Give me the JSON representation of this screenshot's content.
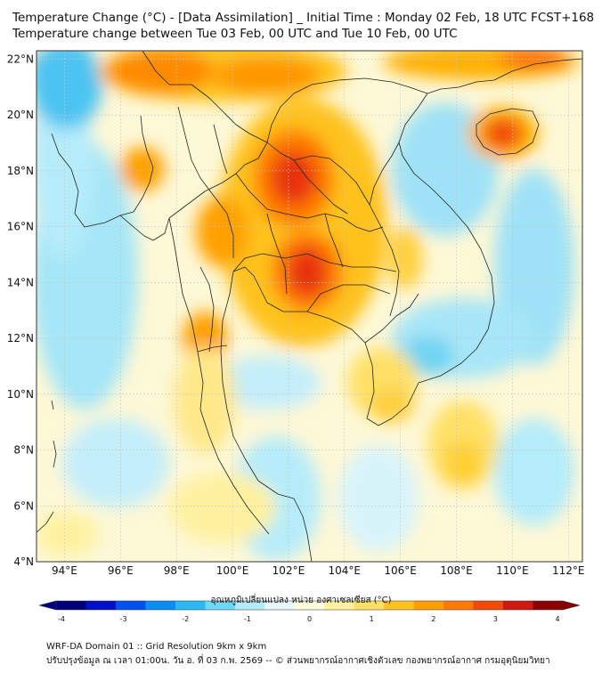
{
  "header": {
    "title_line1": "Temperature Change (°C) - [Data Assimilation] _ Initial Time : Monday 02 Feb, 18 UTC FCST+168",
    "title_line2": "Temperature change between Tue 03 Feb, 00 UTC and Tue 10 Feb, 00 UTC"
  },
  "map": {
    "lat_labels": [
      "22°N",
      "20°N",
      "18°N",
      "16°N",
      "14°N",
      "12°N",
      "10°N",
      "8°N",
      "6°N",
      "4°N"
    ],
    "lon_labels": [
      "94°E",
      "96°E",
      "98°E",
      "100°E",
      "102°E",
      "104°E",
      "106°E",
      "108°E",
      "110°E",
      "112°E"
    ],
    "lat_values": [
      22,
      20,
      18,
      16,
      14,
      12,
      10,
      8,
      6,
      4
    ],
    "lon_values": [
      94,
      96,
      98,
      100,
      102,
      104,
      106,
      108,
      110,
      112
    ],
    "extent": {
      "lon_min": 93,
      "lon_max": 112.5,
      "lat_min": 4,
      "lat_max": 22.3
    }
  },
  "colorbar": {
    "title": "อุณหภูมิเปลี่ยนแปลง หน่วย องศาเซลเซียส (°C)",
    "tick_labels": [
      "-4",
      "-3",
      "-2",
      "-1",
      "0",
      "1",
      "2",
      "3",
      "4"
    ],
    "tick_values": [
      -4,
      -3,
      -2,
      -1,
      0,
      1,
      2,
      3,
      4
    ],
    "colors": [
      "#00007a",
      "#0010c8",
      "#0050f0",
      "#0a8cf5",
      "#2cb8f5",
      "#6fd8f5",
      "#b4ecfa",
      "#e8f8fc",
      "#fdfbe0",
      "#fff1a0",
      "#ffe066",
      "#ffc21e",
      "#ffa000",
      "#ff7a00",
      "#f04a0a",
      "#cc1a10",
      "#8a0000"
    ]
  },
  "footer": {
    "line1": "WRF-DA Domain 01 :: Grid Resolution 9km x 9km",
    "line2": "ปรับปรุงข้อมูล ณ เวลา 01:00น. วัน อ. ที่ 03 ก.พ. 2569 -- © ส่วนพยากรณ์อากาศเชิงตัวเลข กองพยากรณ์อากาศ กรมอุตุนิยมวิทยา"
  }
}
